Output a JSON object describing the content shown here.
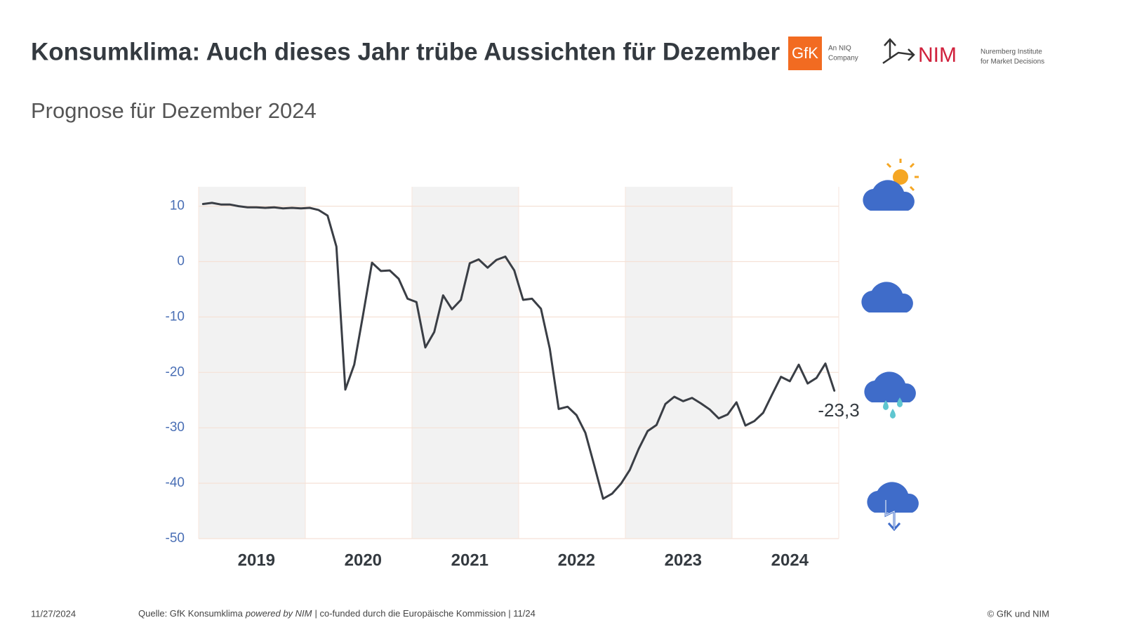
{
  "chart_data": {
    "type": "line",
    "title": "Konsumklima: Auch dieses Jahr trübe Aussichten für Dezember",
    "subtitle": "Prognose für Dezember 2024",
    "categories": [
      null,
      null,
      null,
      null,
      null,
      null,
      "2019",
      null,
      null,
      null,
      null,
      null,
      null,
      null,
      null,
      null,
      null,
      null,
      "2020",
      null,
      null,
      null,
      null,
      null,
      null,
      null,
      null,
      null,
      null,
      null,
      "2021",
      null,
      null,
      null,
      null,
      null,
      null,
      null,
      null,
      null,
      null,
      null,
      "2022",
      null,
      null,
      null,
      null,
      null,
      null,
      null,
      null,
      null,
      null,
      null,
      "2023",
      null,
      null,
      null,
      null,
      null,
      null,
      null,
      null,
      null,
      null,
      null,
      "2024",
      null,
      null,
      null,
      null,
      null
    ],
    "values": [
      10.4,
      10.6,
      10.3,
      10.3,
      10.0,
      9.8,
      9.8,
      9.7,
      9.8,
      9.6,
      9.7,
      9.6,
      9.7,
      9.3,
      8.3,
      2.7,
      -23.1,
      -18.6,
      -9.6,
      -0.2,
      -1.7,
      -1.6,
      -3.1,
      -6.7,
      -7.3,
      -15.5,
      -12.7,
      -6.1,
      -8.6,
      -6.9,
      -0.3,
      0.4,
      -1.1,
      0.3,
      0.9,
      -1.6,
      -6.9,
      -6.7,
      -8.5,
      -15.7,
      -26.6,
      -26.2,
      -27.7,
      -30.9,
      -36.8,
      -42.8,
      -41.9,
      -40.1,
      -37.6,
      -33.8,
      -30.6,
      -29.5,
      -25.7,
      -24.4,
      -25.2,
      -24.6,
      -25.6,
      -26.7,
      -28.3,
      -27.6,
      -25.4,
      -29.6,
      -28.8,
      -27.3,
      -24.0,
      -20.8,
      -21.6,
      -18.6,
      -22.0,
      -21.0,
      -18.4,
      -23.3
    ],
    "value_labels": [
      null,
      null,
      null,
      null,
      null,
      null,
      null,
      null,
      null,
      null,
      null,
      null,
      null,
      null,
      null,
      null,
      null,
      null,
      null,
      null,
      null,
      null,
      null,
      null,
      null,
      null,
      null,
      null,
      null,
      null,
      null,
      null,
      null,
      null,
      null,
      null,
      null,
      null,
      null,
      null,
      null,
      null,
      null,
      null,
      null,
      null,
      null,
      null,
      null,
      null,
      null,
      null,
      null,
      null,
      null,
      null,
      null,
      null,
      null,
      null,
      null,
      null,
      null,
      null,
      null,
      null,
      null,
      null,
      null,
      null,
      null,
      "-23,3"
    ],
    "color": "#3a3e45",
    "ylim": [
      -50,
      13.5
    ],
    "yticks": [
      -50,
      -40,
      -30,
      -20,
      -10,
      0,
      10
    ],
    "grid": true
  },
  "logos": {
    "gfk": "GfK",
    "gfk_note": [
      "An NIQ",
      "Company"
    ],
    "nim": "NIM",
    "nim_note": [
      "Nuremberg Institute",
      "for Market Decisions"
    ]
  },
  "footer": {
    "date": "11/27/2024",
    "source": [
      "Quelle: GfK Konsumklima",
      "powered by NIM",
      "| co-funded durch die Europäische Kommission | 11/24"
    ],
    "copyright": "© GfK und NIM"
  }
}
